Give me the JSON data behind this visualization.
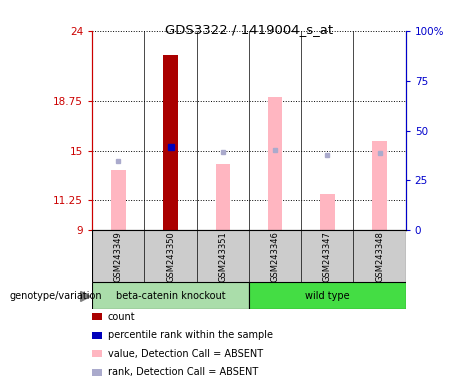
{
  "title": "GDS3322 / 1419004_s_at",
  "samples": [
    "GSM243349",
    "GSM243350",
    "GSM243351",
    "GSM243346",
    "GSM243347",
    "GSM243348"
  ],
  "ylim_left": [
    9,
    24
  ],
  "ylim_right": [
    0,
    100
  ],
  "yticks_left": [
    9,
    11.25,
    15,
    18.75,
    24
  ],
  "yticks_right": [
    0,
    25,
    50,
    75,
    100
  ],
  "ytick_labels_left": [
    "9",
    "11.25",
    "15",
    "18.75",
    "24"
  ],
  "ytick_labels_right": [
    "0",
    "25",
    "50",
    "75",
    "100%"
  ],
  "left_axis_color": "#CC0000",
  "right_axis_color": "#0000CC",
  "pink_bar_values": [
    13.5,
    22.2,
    14.0,
    19.0,
    11.7,
    15.7
  ],
  "pink_bar_color": "#FFB6C1",
  "rank_dot_values": [
    14.2,
    15.25,
    14.9,
    15.05,
    14.65,
    14.8
  ],
  "rank_dot_color": "#AAAACC",
  "red_bar_idx": 1,
  "red_bar_value": 22.2,
  "red_bar_color": "#AA0000",
  "blue_dot_idx": 1,
  "blue_dot_value": 15.25,
  "blue_dot_color": "#0000BB",
  "bar_width": 0.28,
  "grp1_color": "#AADDAA",
  "grp2_color": "#44DD44",
  "grp1_label": "beta-catenin knockout",
  "grp2_label": "wild type",
  "sample_box_color": "#CCCCCC",
  "genotype_label": "genotype/variation",
  "legend_items": [
    {
      "label": "count",
      "color": "#AA0000"
    },
    {
      "label": "percentile rank within the sample",
      "color": "#0000BB"
    },
    {
      "label": "value, Detection Call = ABSENT",
      "color": "#FFB6C1"
    },
    {
      "label": "rank, Detection Call = ABSENT",
      "color": "#AAAACC"
    }
  ]
}
